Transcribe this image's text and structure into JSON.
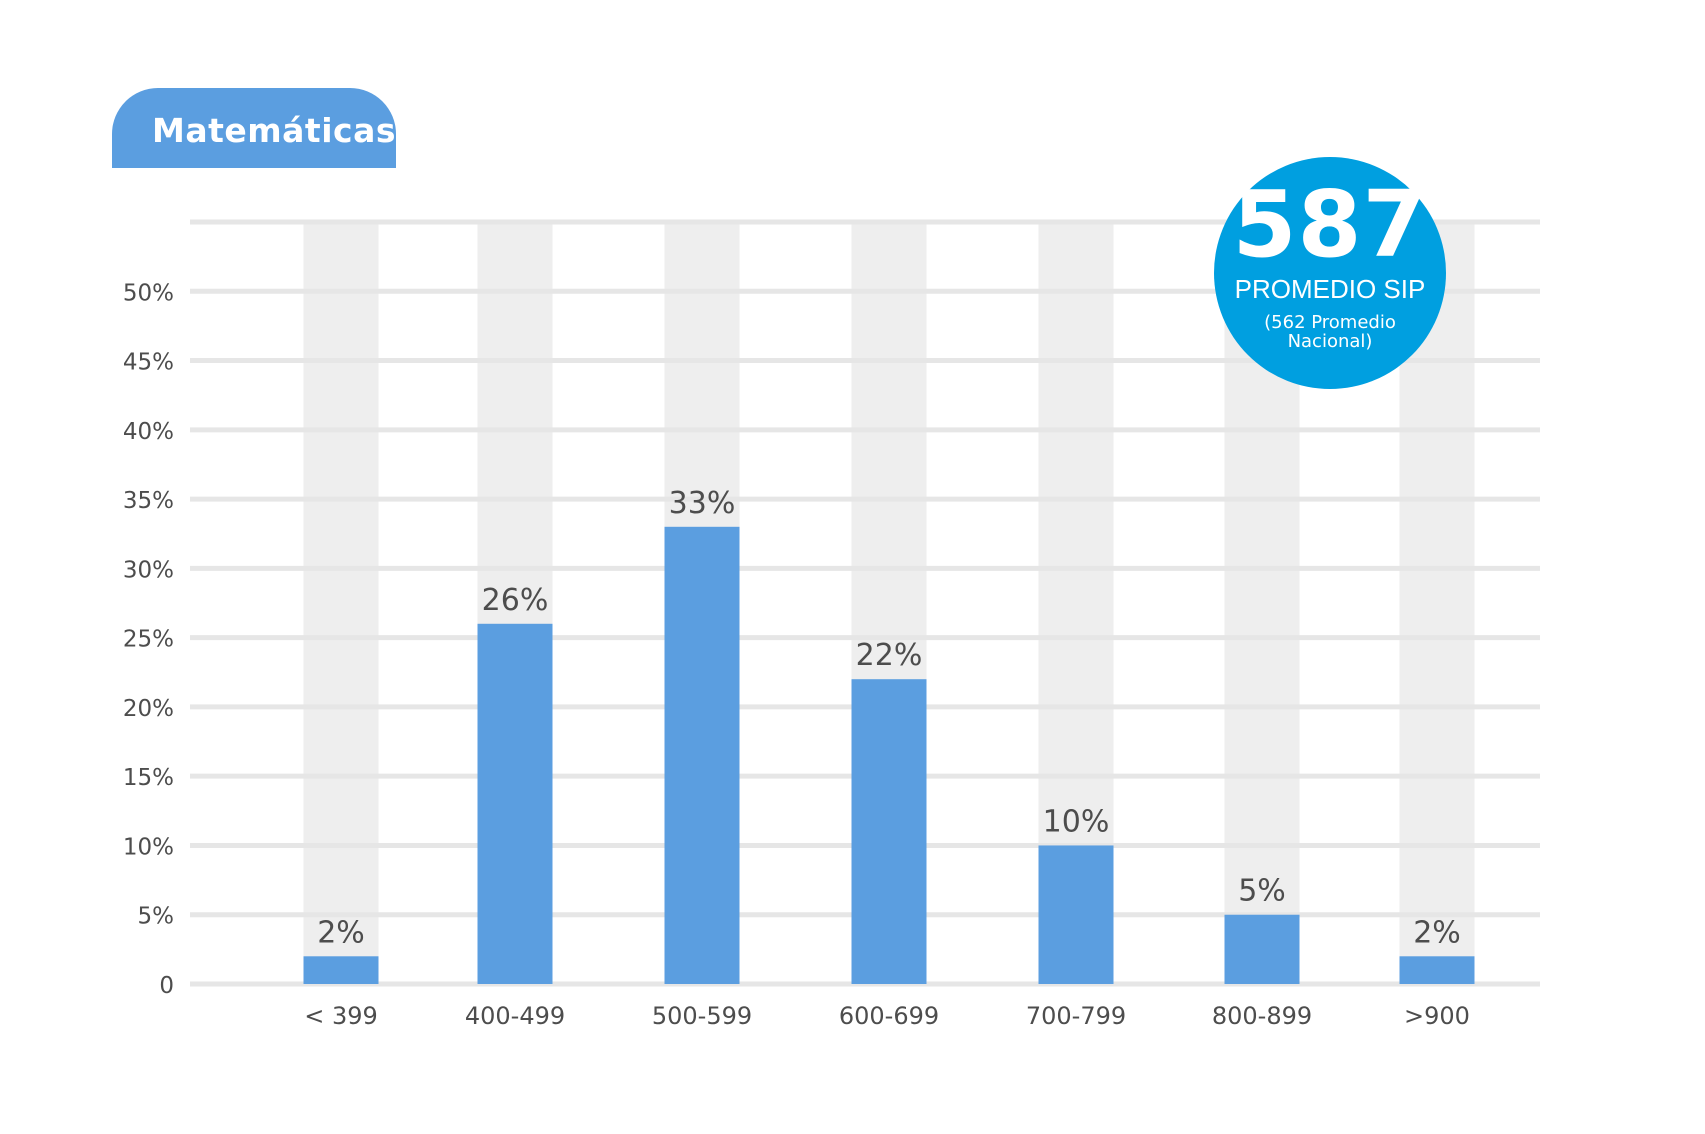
{
  "title": "Matemáticas",
  "badge": {
    "value": "587",
    "label": "PROMEDIO SIP",
    "note": "(562 Promedio Nacional)"
  },
  "colors": {
    "bar": "#5b9ee0",
    "track": "#eeeeee",
    "grid": "#e6e6e6",
    "badge": "#009fe0",
    "text": "#4d4d4d"
  },
  "chart_data": {
    "type": "bar",
    "categories": [
      "< 399",
      "400-499",
      "500-599",
      "600-699",
      "700-799",
      "800-899",
      ">900"
    ],
    "values": [
      2,
      26,
      33,
      22,
      10,
      5,
      2
    ],
    "value_labels": [
      "2%",
      "26%",
      "33%",
      "22%",
      "10%",
      "5%",
      "2%"
    ],
    "y_ticks": [
      0,
      5,
      10,
      15,
      20,
      25,
      30,
      35,
      40,
      45,
      50
    ],
    "y_tick_labels": [
      "0",
      "5%",
      "10%",
      "15%",
      "20%",
      "25%",
      "30%",
      "35%",
      "40%",
      "45%",
      "50%"
    ],
    "ylim": [
      0,
      55
    ],
    "grid": true,
    "background_tracks": true,
    "title": "Matemáticas",
    "xlabel": "",
    "ylabel": ""
  }
}
